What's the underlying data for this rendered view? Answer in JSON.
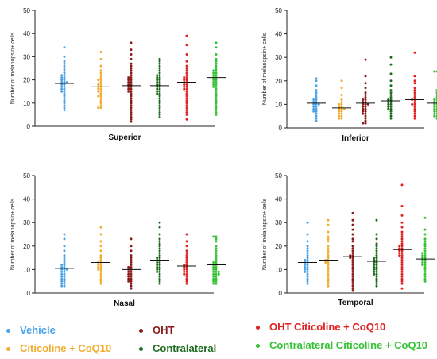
{
  "colors": {
    "vehicle": "#4aa3e8",
    "citicoline_coq10": "#f0ad2f",
    "oht": "#8b1a1a",
    "contralateral": "#1e6b1e",
    "oht_citicoline_coq10": "#e02222",
    "contralateral_citicoline_coq10": "#36c236"
  },
  "legend": [
    {
      "label": "Vehicle",
      "color_key": "vehicle"
    },
    {
      "label": "Citicoline + CoQ10",
      "color_key": "citicoline_coq10"
    },
    {
      "label": "OHT",
      "color_key": "oht"
    },
    {
      "label": "Contralateral",
      "color_key": "contralateral"
    },
    {
      "label": "OHT Citicoline + CoQ10",
      "color_key": "oht_citicoline_coq10"
    },
    {
      "label": "Contralateral Citicoline + CoQ10",
      "color_key": "contralateral_citicoline_coq10"
    }
  ],
  "chart_data": [
    {
      "type": "scatter",
      "title": "Superior",
      "ylabel": "Number of melanopsin+ cells",
      "ylim": [
        0,
        50
      ],
      "yticks": [
        0,
        10,
        20,
        30,
        40,
        50
      ],
      "series": [
        {
          "color_key": "vehicle",
          "mean": 18.5,
          "values": [
            34,
            30,
            28,
            27,
            26,
            25,
            24,
            23,
            22,
            22,
            21,
            21,
            20,
            20,
            19,
            19,
            19,
            18,
            18,
            17,
            17,
            16,
            16,
            15,
            15,
            14,
            13,
            12,
            11,
            10,
            9,
            8,
            7
          ]
        },
        {
          "color_key": "citicoline_coq10",
          "mean": 17,
          "values": [
            32,
            29,
            26,
            24,
            23,
            22,
            21,
            20,
            20,
            19,
            18,
            18,
            17,
            17,
            16,
            16,
            15,
            15,
            14,
            13,
            13,
            12,
            11,
            10,
            9,
            8,
            8
          ]
        },
        {
          "color_key": "oht",
          "mean": 17.5,
          "values": [
            36,
            33,
            31,
            29,
            27,
            26,
            25,
            24,
            23,
            22,
            21,
            21,
            20,
            20,
            19,
            19,
            18,
            18,
            17,
            17,
            16,
            16,
            15,
            15,
            14,
            13,
            12,
            11,
            10,
            9,
            8,
            7,
            6,
            5,
            4,
            3,
            2
          ]
        },
        {
          "color_key": "contralateral",
          "mean": 17.5,
          "values": [
            29,
            28,
            27,
            26,
            25,
            24,
            23,
            22,
            22,
            21,
            21,
            20,
            20,
            19,
            19,
            18,
            18,
            17,
            17,
            16,
            16,
            15,
            15,
            14,
            14,
            13,
            12,
            11,
            10,
            9,
            8,
            7,
            6,
            5,
            4
          ]
        },
        {
          "color_key": "oht_citicoline_coq10",
          "mean": 19,
          "values": [
            39,
            35,
            31,
            28,
            26,
            25,
            24,
            23,
            22,
            21,
            21,
            20,
            20,
            19,
            19,
            18,
            18,
            17,
            17,
            16,
            16,
            15,
            14,
            13,
            12,
            11,
            10,
            9,
            8,
            7,
            6,
            5,
            3
          ]
        },
        {
          "color_key": "contralateral_citicoline_coq10",
          "mean": 21,
          "values": [
            36,
            34,
            31,
            29,
            28,
            27,
            26,
            25,
            24,
            24,
            23,
            23,
            22,
            22,
            21,
            21,
            20,
            20,
            19,
            19,
            18,
            18,
            17,
            17,
            16,
            15,
            14,
            13,
            12,
            11,
            10,
            9,
            8,
            7,
            6,
            5
          ]
        }
      ]
    },
    {
      "type": "scatter",
      "title": "Inferior",
      "ylabel": "Number of melanopsin+ cells",
      "ylim": [
        0,
        50
      ],
      "yticks": [
        0,
        10,
        20,
        30,
        40,
        50
      ],
      "series": [
        {
          "color_key": "vehicle",
          "mean": 10.5,
          "values": [
            21,
            20,
            18,
            16,
            15,
            14,
            13,
            12,
            12,
            11,
            11,
            10,
            10,
            10,
            9,
            9,
            8,
            8,
            7,
            7,
            6,
            5,
            4,
            3
          ]
        },
        {
          "color_key": "citicoline_coq10",
          "mean": 8.5,
          "values": [
            20,
            17,
            14,
            12,
            11,
            10,
            10,
            9,
            9,
            8,
            8,
            8,
            7,
            7,
            6,
            6,
            5,
            5,
            4,
            4
          ]
        },
        {
          "color_key": "oht",
          "mean": 10.5,
          "values": [
            29,
            22,
            19,
            17,
            15,
            14,
            13,
            12,
            12,
            11,
            11,
            10,
            10,
            10,
            9,
            9,
            8,
            8,
            7,
            7,
            6,
            6,
            5,
            4,
            3,
            2,
            2
          ]
        },
        {
          "color_key": "contralateral",
          "mean": 11.5,
          "values": [
            30,
            27,
            23,
            20,
            18,
            16,
            15,
            14,
            13,
            12,
            12,
            11,
            11,
            10,
            10,
            9,
            9,
            8,
            8,
            7,
            6,
            5,
            4
          ]
        },
        {
          "color_key": "oht_citicoline_coq10",
          "mean": 12,
          "values": [
            32,
            22,
            20,
            19,
            17,
            16,
            15,
            14,
            13,
            12,
            12,
            11,
            10,
            10,
            9,
            8,
            7,
            6,
            5,
            4
          ]
        },
        {
          "color_key": "contralateral_citicoline_coq10",
          "mean": 10.5,
          "values": [
            24,
            24,
            16,
            15,
            14,
            13,
            12,
            12,
            11,
            11,
            10,
            10,
            10,
            9,
            9,
            9,
            8,
            8,
            8,
            7,
            7,
            6,
            6,
            5,
            5,
            4
          ]
        }
      ]
    },
    {
      "type": "scatter",
      "title": "Nasal",
      "ylabel": "Number of melanopsin+ cells",
      "ylim": [
        0,
        50
      ],
      "yticks": [
        0,
        10,
        20,
        30,
        40,
        50
      ],
      "series": [
        {
          "color_key": "vehicle",
          "mean": 10.5,
          "values": [
            25,
            23,
            20,
            18,
            16,
            15,
            14,
            13,
            12,
            12,
            11,
            11,
            10,
            10,
            10,
            9,
            9,
            8,
            8,
            7,
            7,
            6,
            6,
            5,
            5,
            4,
            4,
            3,
            3
          ]
        },
        {
          "color_key": "citicoline_coq10",
          "mean": 13,
          "values": [
            28,
            25,
            22,
            20,
            18,
            16,
            15,
            14,
            13,
            13,
            12,
            12,
            11,
            11,
            10,
            10,
            9,
            8,
            7,
            6,
            5,
            4
          ]
        },
        {
          "color_key": "oht",
          "mean": 10,
          "values": [
            23,
            20,
            18,
            16,
            15,
            14,
            13,
            12,
            11,
            11,
            10,
            10,
            9,
            9,
            8,
            8,
            7,
            7,
            6,
            6,
            5,
            5,
            4,
            3,
            2
          ]
        },
        {
          "color_key": "contralateral",
          "mean": 14,
          "values": [
            30,
            28,
            25,
            23,
            22,
            21,
            20,
            19,
            18,
            17,
            16,
            15,
            15,
            14,
            14,
            13,
            13,
            12,
            12,
            11,
            11,
            10,
            10,
            9,
            9,
            8,
            7,
            6,
            5,
            4
          ]
        },
        {
          "color_key": "oht_citicoline_coq10",
          "mean": 11.5,
          "values": [
            25,
            22,
            20,
            18,
            17,
            16,
            15,
            14,
            13,
            12,
            12,
            11,
            11,
            10,
            10,
            9,
            9,
            8,
            8,
            7,
            6,
            5,
            4
          ]
        },
        {
          "color_key": "contralateral_citicoline_coq10",
          "mean": 12,
          "values": [
            24,
            24,
            23,
            22,
            20,
            19,
            18,
            17,
            16,
            15,
            14,
            13,
            13,
            12,
            12,
            11,
            11,
            10,
            10,
            9,
            9,
            9,
            8,
            8,
            8,
            7,
            7,
            6,
            6,
            5,
            5,
            4,
            4
          ]
        }
      ]
    },
    {
      "type": "scatter",
      "title": "Temporal",
      "ylabel": "Number of melanopsin+ cells",
      "ylim": [
        0,
        50
      ],
      "yticks": [
        0,
        10,
        20,
        30,
        40,
        50
      ],
      "series": [
        {
          "color_key": "vehicle",
          "mean": 13,
          "values": [
            30,
            25,
            22,
            20,
            19,
            18,
            17,
            16,
            15,
            14,
            14,
            13,
            13,
            12,
            12,
            11,
            11,
            10,
            10,
            9,
            9,
            8,
            7,
            6,
            5,
            4
          ]
        },
        {
          "color_key": "citicoline_coq10",
          "mean": 14,
          "values": [
            31,
            29,
            26,
            24,
            23,
            22,
            20,
            19,
            18,
            17,
            16,
            15,
            14,
            14,
            13,
            13,
            12,
            11,
            10,
            9,
            8,
            7,
            6,
            5,
            4,
            3
          ]
        },
        {
          "color_key": "oht",
          "mean": 15.5,
          "values": [
            34,
            31,
            29,
            27,
            25,
            23,
            22,
            20,
            19,
            18,
            17,
            16,
            16,
            15,
            15,
            14,
            13,
            12,
            11,
            10,
            9,
            8,
            7,
            6,
            5,
            4,
            3,
            2,
            1
          ]
        },
        {
          "color_key": "contralateral",
          "mean": 13.5,
          "values": [
            31,
            25,
            23,
            21,
            20,
            19,
            18,
            17,
            16,
            15,
            15,
            14,
            14,
            13,
            13,
            12,
            12,
            11,
            11,
            10,
            10,
            9,
            9,
            8,
            8,
            7,
            6,
            5,
            4,
            3
          ]
        },
        {
          "color_key": "oht_citicoline_coq10",
          "mean": 18.5,
          "values": [
            46,
            37,
            33,
            30,
            28,
            26,
            25,
            24,
            23,
            22,
            21,
            20,
            20,
            19,
            19,
            18,
            18,
            17,
            17,
            16,
            16,
            15,
            14,
            13,
            12,
            11,
            10,
            9,
            8,
            7,
            6,
            5,
            4,
            2
          ]
        },
        {
          "color_key": "contralateral_citicoline_coq10",
          "mean": 14.5,
          "values": [
            32,
            27,
            25,
            23,
            22,
            21,
            20,
            19,
            18,
            17,
            17,
            16,
            16,
            15,
            15,
            14,
            14,
            13,
            13,
            12,
            12,
            11,
            10,
            9,
            8,
            7,
            6,
            5
          ]
        }
      ]
    }
  ]
}
